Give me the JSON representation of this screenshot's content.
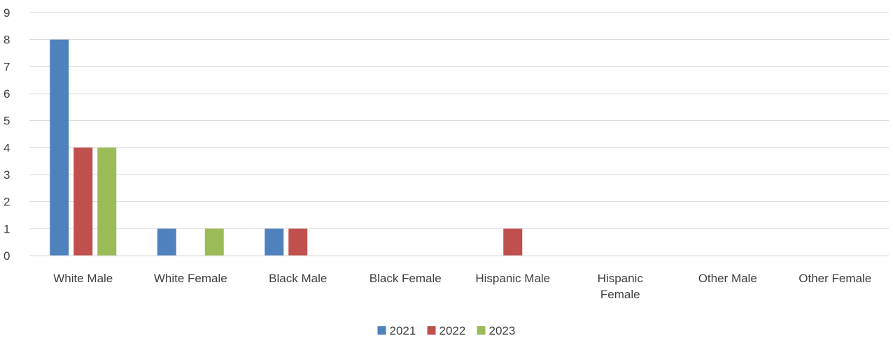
{
  "chart_data": {
    "type": "bar",
    "categories": [
      [
        "White Male"
      ],
      [
        "White Female"
      ],
      [
        "Black Male"
      ],
      [
        "Black Female"
      ],
      [
        "Hispanic Male"
      ],
      [
        "Hispanic",
        "Female"
      ],
      [
        "Other Male"
      ],
      [
        "Other Female"
      ]
    ],
    "series": [
      {
        "name": "2021",
        "color": "#4f81bd",
        "values": [
          8,
          1,
          1,
          0,
          0,
          0,
          0,
          0
        ]
      },
      {
        "name": "2022",
        "color": "#c0504d",
        "values": [
          4,
          0,
          1,
          0,
          1,
          0,
          0,
          0
        ]
      },
      {
        "name": "2023",
        "color": "#9bbb59",
        "values": [
          4,
          1,
          0,
          0,
          0,
          0,
          0,
          0
        ]
      }
    ],
    "ylim": [
      0,
      9
    ],
    "yticks": [
      0,
      1,
      2,
      3,
      4,
      5,
      6,
      7,
      8,
      9
    ],
    "grid": true,
    "legend": "bottom",
    "title": "",
    "xlabel": "",
    "ylabel": ""
  }
}
